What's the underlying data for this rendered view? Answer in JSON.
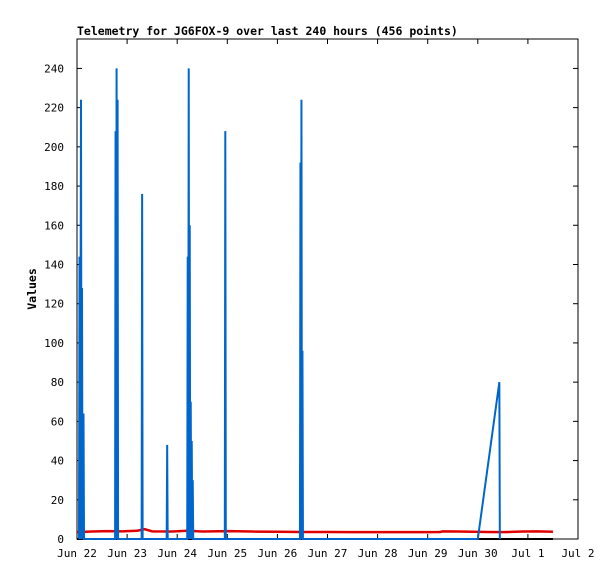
{
  "chart_data": {
    "type": "line",
    "title": "Telemetry for JG6FOX-9 over last 240 hours (456 points)",
    "ylabel": "Values",
    "xlabel": "",
    "x_tick_labels": [
      "Jun 22",
      "Jun 23",
      "Jun 24",
      "Jun 25",
      "Jun 26",
      "Jun 27",
      "Jun 28",
      "Jun 29",
      "Jun 30",
      "Jul 1",
      "Jul 2"
    ],
    "x_range_days": [
      0,
      10
    ],
    "ylim": [
      0,
      255
    ],
    "y_ticks": [
      0,
      20,
      40,
      60,
      80,
      100,
      120,
      140,
      160,
      180,
      200,
      220,
      240
    ],
    "grid": false,
    "legend": "none",
    "colors": {
      "blue_series": "#0066cc",
      "red_series": "#e00000",
      "black_series": "#000000"
    },
    "series": [
      {
        "color": "blue",
        "points": [
          [
            0.04,
            0
          ],
          [
            0.05,
            144
          ],
          [
            0.06,
            0
          ],
          [
            0.08,
            224
          ],
          [
            0.09,
            0
          ],
          [
            0.1,
            128
          ],
          [
            0.11,
            0
          ],
          [
            0.13,
            64
          ],
          [
            0.14,
            0
          ],
          [
            0.76,
            0
          ],
          [
            0.77,
            208
          ],
          [
            0.78,
            0
          ],
          [
            0.79,
            240
          ],
          [
            0.8,
            0
          ],
          [
            0.81,
            224
          ],
          [
            0.82,
            0
          ],
          [
            1.29,
            0
          ],
          [
            1.3,
            176
          ],
          [
            1.31,
            0
          ],
          [
            1.79,
            0
          ],
          [
            1.8,
            48
          ],
          [
            1.81,
            0
          ],
          [
            2.2,
            0
          ],
          [
            2.21,
            144
          ],
          [
            2.22,
            0
          ],
          [
            2.23,
            240
          ],
          [
            2.24,
            0
          ],
          [
            2.25,
            160
          ],
          [
            2.26,
            0
          ],
          [
            2.27,
            70
          ],
          [
            2.28,
            0
          ],
          [
            2.29,
            50
          ],
          [
            2.3,
            0
          ],
          [
            2.31,
            30
          ],
          [
            2.32,
            0
          ],
          [
            2.95,
            0
          ],
          [
            2.96,
            208
          ],
          [
            2.97,
            0
          ],
          [
            4.45,
            0
          ],
          [
            4.46,
            192
          ],
          [
            4.47,
            0
          ],
          [
            4.48,
            224
          ],
          [
            4.49,
            0
          ],
          [
            4.5,
            96
          ],
          [
            4.51,
            0
          ],
          [
            8.0,
            0
          ],
          [
            8.43,
            80
          ],
          [
            8.44,
            0
          ]
        ]
      },
      {
        "color": "red",
        "points": [
          [
            0.0,
            3.5
          ],
          [
            0.3,
            3.8
          ],
          [
            0.6,
            4.0
          ],
          [
            0.9,
            3.9
          ],
          [
            1.2,
            4.2
          ],
          [
            1.35,
            5.0
          ],
          [
            1.5,
            3.9
          ],
          [
            1.9,
            3.8
          ],
          [
            2.2,
            4.2
          ],
          [
            2.5,
            3.8
          ],
          [
            3.0,
            4.0
          ],
          [
            3.5,
            3.8
          ],
          [
            4.0,
            3.7
          ],
          [
            4.5,
            3.6
          ],
          [
            5.0,
            3.6
          ],
          [
            5.5,
            3.5
          ],
          [
            6.0,
            3.5
          ],
          [
            6.5,
            3.5
          ],
          [
            7.0,
            3.5
          ],
          [
            7.25,
            3.6
          ],
          [
            7.3,
            3.9
          ],
          [
            7.6,
            3.8
          ],
          [
            7.9,
            3.7
          ],
          [
            8.2,
            3.6
          ],
          [
            8.5,
            3.5
          ],
          [
            8.9,
            3.8
          ],
          [
            9.2,
            3.9
          ],
          [
            9.5,
            3.7
          ]
        ]
      },
      {
        "color": "black",
        "points": [
          [
            0.0,
            0
          ],
          [
            9.5,
            0
          ]
        ]
      }
    ]
  }
}
